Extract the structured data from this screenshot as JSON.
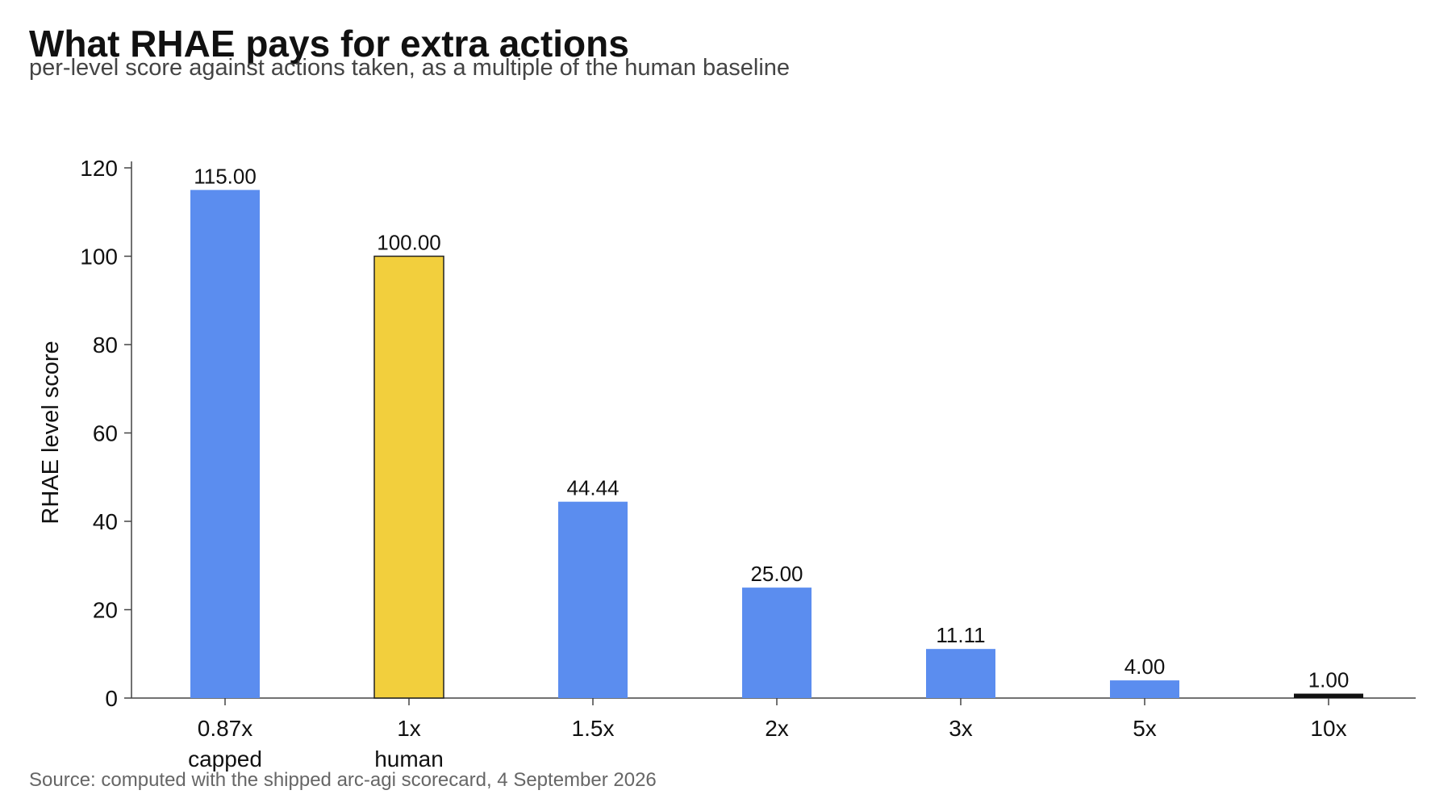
{
  "title": "What RHAE pays for extra actions",
  "subtitle": "per-level score against actions taken, as a multiple of the human baseline",
  "source": "Source: computed with the shipped arc-agi scorecard, 4 September 2026",
  "colors": {
    "bar": "#5b8def",
    "highlight": "#f2cf3d",
    "highlight_stroke": "#222222",
    "last_bar": "#111111",
    "axis": "#444444"
  },
  "chart_data": {
    "type": "bar",
    "categories": [
      {
        "label": "0.87x",
        "sublabel": "capped"
      },
      {
        "label": "1x",
        "sublabel": "human"
      },
      {
        "label": "1.5x",
        "sublabel": ""
      },
      {
        "label": "2x",
        "sublabel": ""
      },
      {
        "label": "3x",
        "sublabel": ""
      },
      {
        "label": "5x",
        "sublabel": ""
      },
      {
        "label": "10x",
        "sublabel": ""
      }
    ],
    "values": [
      115.0,
      100.0,
      44.44,
      25.0,
      11.11,
      4.0,
      1.0
    ],
    "value_labels": [
      "115.00",
      "100.00",
      "44.44",
      "25.00",
      "11.11",
      "4.00",
      "1.00"
    ],
    "bar_styles": [
      "normal",
      "highlight",
      "normal",
      "normal",
      "normal",
      "normal",
      "dark"
    ],
    "xlabel": "",
    "ylabel": "RHAE level score",
    "ylim": [
      0,
      120
    ],
    "yticks": [
      0,
      20,
      40,
      60,
      80,
      100,
      120
    ],
    "grid": false,
    "legend": "none"
  }
}
